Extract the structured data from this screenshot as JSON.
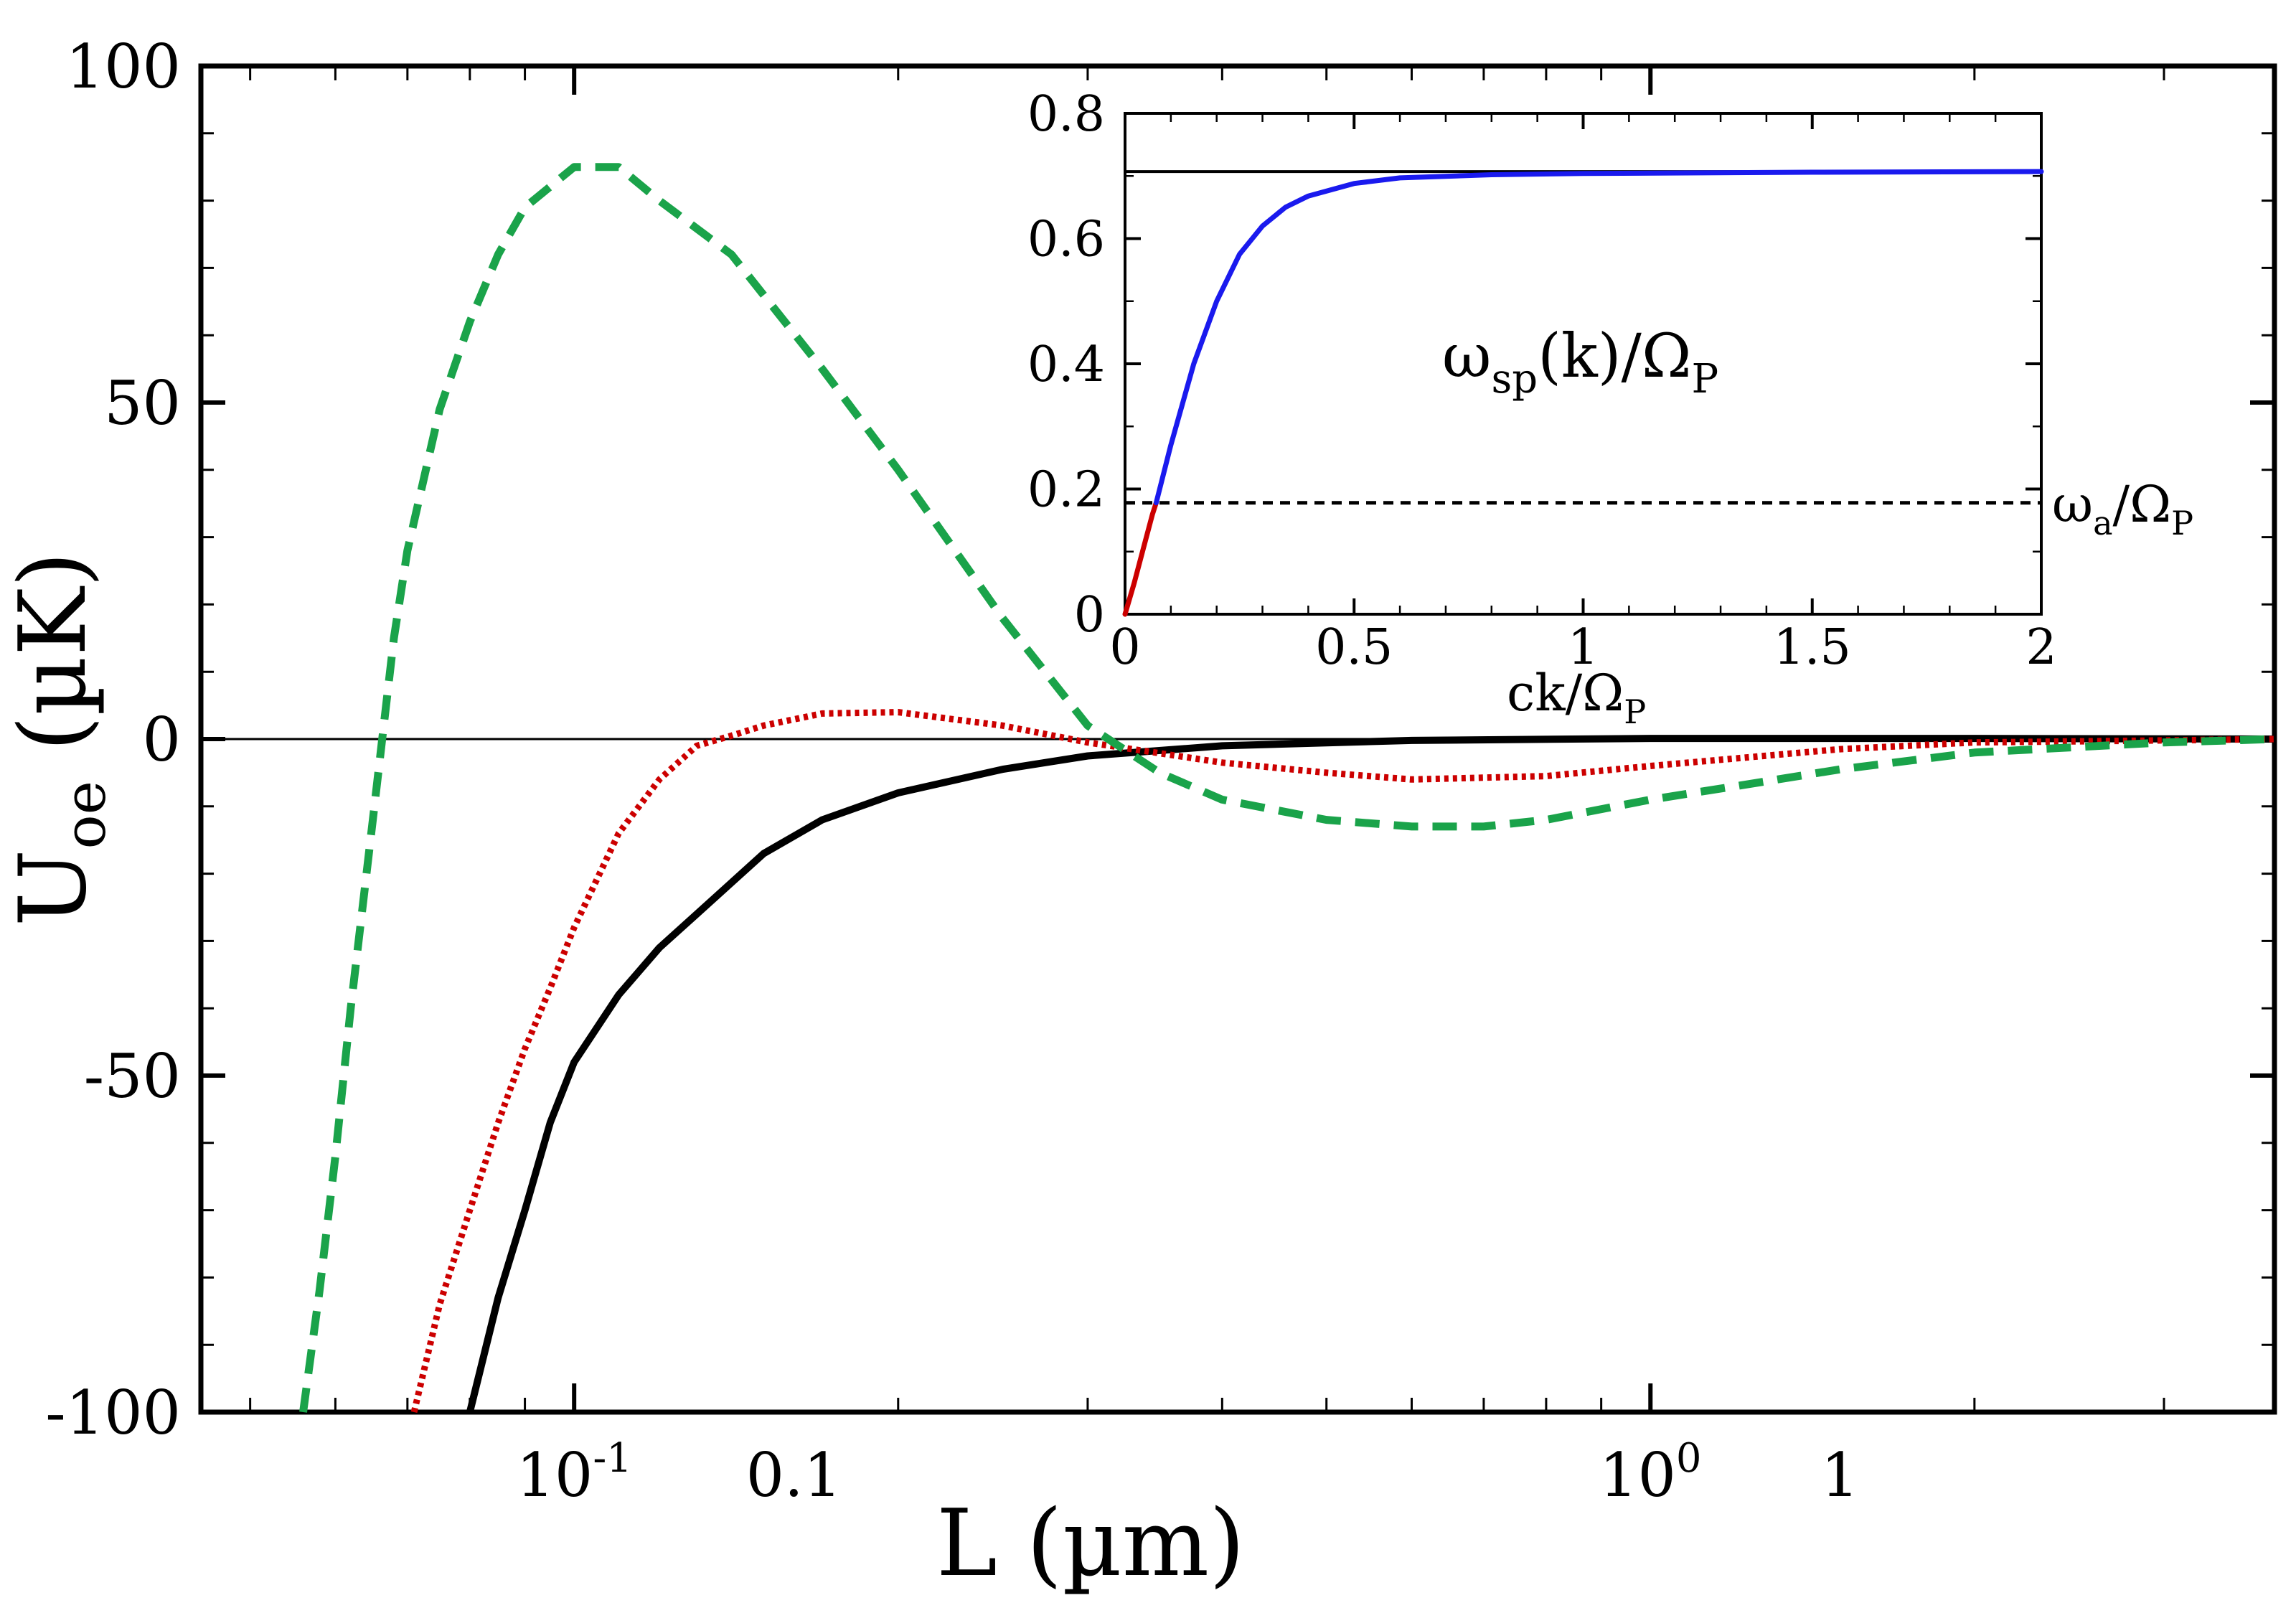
{
  "chart_data": [
    {
      "type": "line",
      "title": "",
      "xlabel_main": "L",
      "xlabel_unit": "(µm)",
      "ylabel_main": "U",
      "ylabel_sub": "oe",
      "ylabel_unit": "(µK)",
      "xscale": "log",
      "xlim": [
        0.045,
        3.8
      ],
      "ylim": [
        -100,
        100
      ],
      "y_ticks": [
        {
          "value": 100,
          "label": "100"
        },
        {
          "value": 50,
          "label": "50"
        },
        {
          "value": 0,
          "label": "0"
        },
        {
          "value": -50,
          "label": "-50"
        },
        {
          "value": -100,
          "label": "-100"
        }
      ],
      "x_tick_labels": [
        {
          "value": 0.1,
          "base": "10",
          "exp": "-1"
        },
        {
          "value": 0.16,
          "text": "0.1"
        },
        {
          "value": 1,
          "base": "10",
          "exp": "0"
        },
        {
          "value": 1.5,
          "text": "1"
        }
      ],
      "zero_line": true,
      "series": [
        {
          "name": "solid",
          "color": "#000000",
          "style": "solid",
          "x": [
            0.08,
            0.085,
            0.09,
            0.095,
            0.1,
            0.11,
            0.12,
            0.13,
            0.15,
            0.17,
            0.2,
            0.25,
            0.3,
            0.4,
            0.6,
            1.0,
            2.0,
            3.8
          ],
          "y": [
            -100,
            -83,
            -70,
            -57,
            -48,
            -38,
            -31,
            -26,
            -17,
            -12,
            -8,
            -4.5,
            -2.5,
            -1,
            -0.2,
            0.1,
            0.1,
            0
          ]
        },
        {
          "name": "dotted",
          "color": "#cc0000",
          "style": "dotted",
          "x": [
            0.071,
            0.075,
            0.08,
            0.085,
            0.09,
            0.095,
            0.1,
            0.11,
            0.12,
            0.13,
            0.14,
            0.15,
            0.17,
            0.2,
            0.25,
            0.3,
            0.4,
            0.5,
            0.6,
            0.8,
            1.0,
            1.5,
            2.0,
            3.0,
            3.8
          ],
          "y": [
            -100,
            -84,
            -70,
            -57,
            -46,
            -37,
            -28,
            -14,
            -6,
            -1,
            0.5,
            2,
            3.8,
            4,
            2,
            -0.5,
            -3.5,
            -5,
            -6,
            -5.5,
            -4,
            -1.5,
            -0.5,
            -0.2,
            0
          ]
        },
        {
          "name": "dashed",
          "color": "#1aa34a",
          "style": "dashed",
          "x": [
            0.056,
            0.058,
            0.06,
            0.062,
            0.065,
            0.068,
            0.07,
            0.075,
            0.08,
            0.085,
            0.09,
            0.1,
            0.11,
            0.12,
            0.14,
            0.17,
            0.2,
            0.25,
            0.3,
            0.35,
            0.4,
            0.5,
            0.6,
            0.7,
            0.8,
            1.0,
            1.2,
            1.5,
            2.0,
            3.0,
            3.8
          ],
          "y": [
            -100,
            -82,
            -62,
            -40,
            -12,
            15,
            28,
            49,
            62,
            72,
            79,
            85,
            85,
            80,
            72,
            55,
            40,
            18,
            2,
            -5,
            -9,
            -12,
            -13,
            -13,
            -12,
            -9,
            -7,
            -4.5,
            -2,
            -0.5,
            0
          ]
        }
      ]
    },
    {
      "type": "line",
      "title": "",
      "xlabel": "ck/Ω",
      "xlabel_sub": "P",
      "annotation_main": "ω",
      "annotation_sub1": "sp",
      "annotation_mid": "(k)/Ω",
      "annotation_sub2": "P",
      "ref_label_main": "ω",
      "ref_label_sub1": "a",
      "ref_label_mid": "/Ω",
      "ref_label_sub2": "P",
      "xlim": [
        0,
        2
      ],
      "ylim": [
        0,
        0.8
      ],
      "x_ticks": [
        {
          "value": 0,
          "label": "0"
        },
        {
          "value": 0.5,
          "label": "0.5"
        },
        {
          "value": 1,
          "label": "1"
        },
        {
          "value": 1.5,
          "label": "1.5"
        },
        {
          "value": 2,
          "label": "2"
        }
      ],
      "y_ticks": [
        {
          "value": 0,
          "label": "0"
        },
        {
          "value": 0.2,
          "label": "0.2"
        },
        {
          "value": 0.4,
          "label": "0.4"
        },
        {
          "value": 0.6,
          "label": "0.6"
        },
        {
          "value": 0.8,
          "label": "0.8"
        }
      ],
      "asymptote": 0.707,
      "reference_level": 0.178,
      "series": [
        {
          "name": "dispersion-below",
          "color": "#cc0000",
          "x": [
            0,
            0.02,
            0.04,
            0.06,
            0.068
          ],
          "y": [
            0,
            0.05,
            0.105,
            0.16,
            0.178
          ]
        },
        {
          "name": "dispersion-above",
          "color": "#1a1aee",
          "x": [
            0.068,
            0.1,
            0.15,
            0.2,
            0.25,
            0.3,
            0.35,
            0.4,
            0.5,
            0.6,
            0.8,
            1.0,
            1.5,
            2.0
          ],
          "y": [
            0.178,
            0.27,
            0.4,
            0.5,
            0.575,
            0.62,
            0.65,
            0.668,
            0.688,
            0.697,
            0.702,
            0.704,
            0.706,
            0.707
          ]
        }
      ]
    }
  ]
}
